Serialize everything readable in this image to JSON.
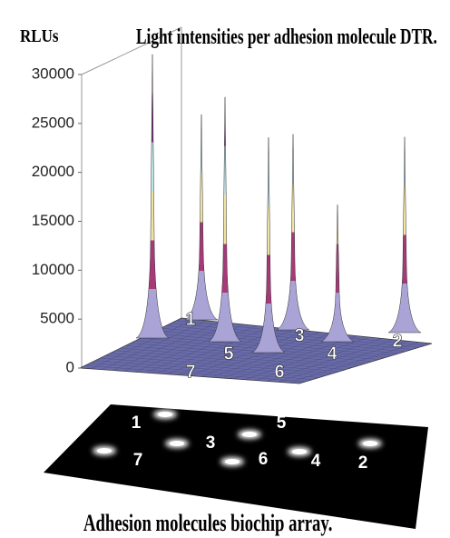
{
  "chart_data": {
    "type": "surface3d",
    "title": "Light intensities per adhesion molecule DTR.",
    "ylabel": "RLUs",
    "categories": [
      "1",
      "5",
      "3",
      "7",
      "6",
      "4",
      "2"
    ],
    "values": [
      21000,
      25000,
      20000,
      29000,
      22000,
      14000,
      20000
    ],
    "ylim": [
      0,
      30000
    ],
    "yticks": [
      0,
      5000,
      10000,
      15000,
      20000,
      25000,
      30000
    ],
    "band_colors": [
      "#a9a3d6",
      "#a63a78",
      "#efe2a2",
      "#bfe2ea",
      "#7a2a80",
      "#f09a90"
    ],
    "floor_color": "#6a6ca8"
  },
  "array": {
    "caption": "Adhesion molecules biochip array."
  }
}
